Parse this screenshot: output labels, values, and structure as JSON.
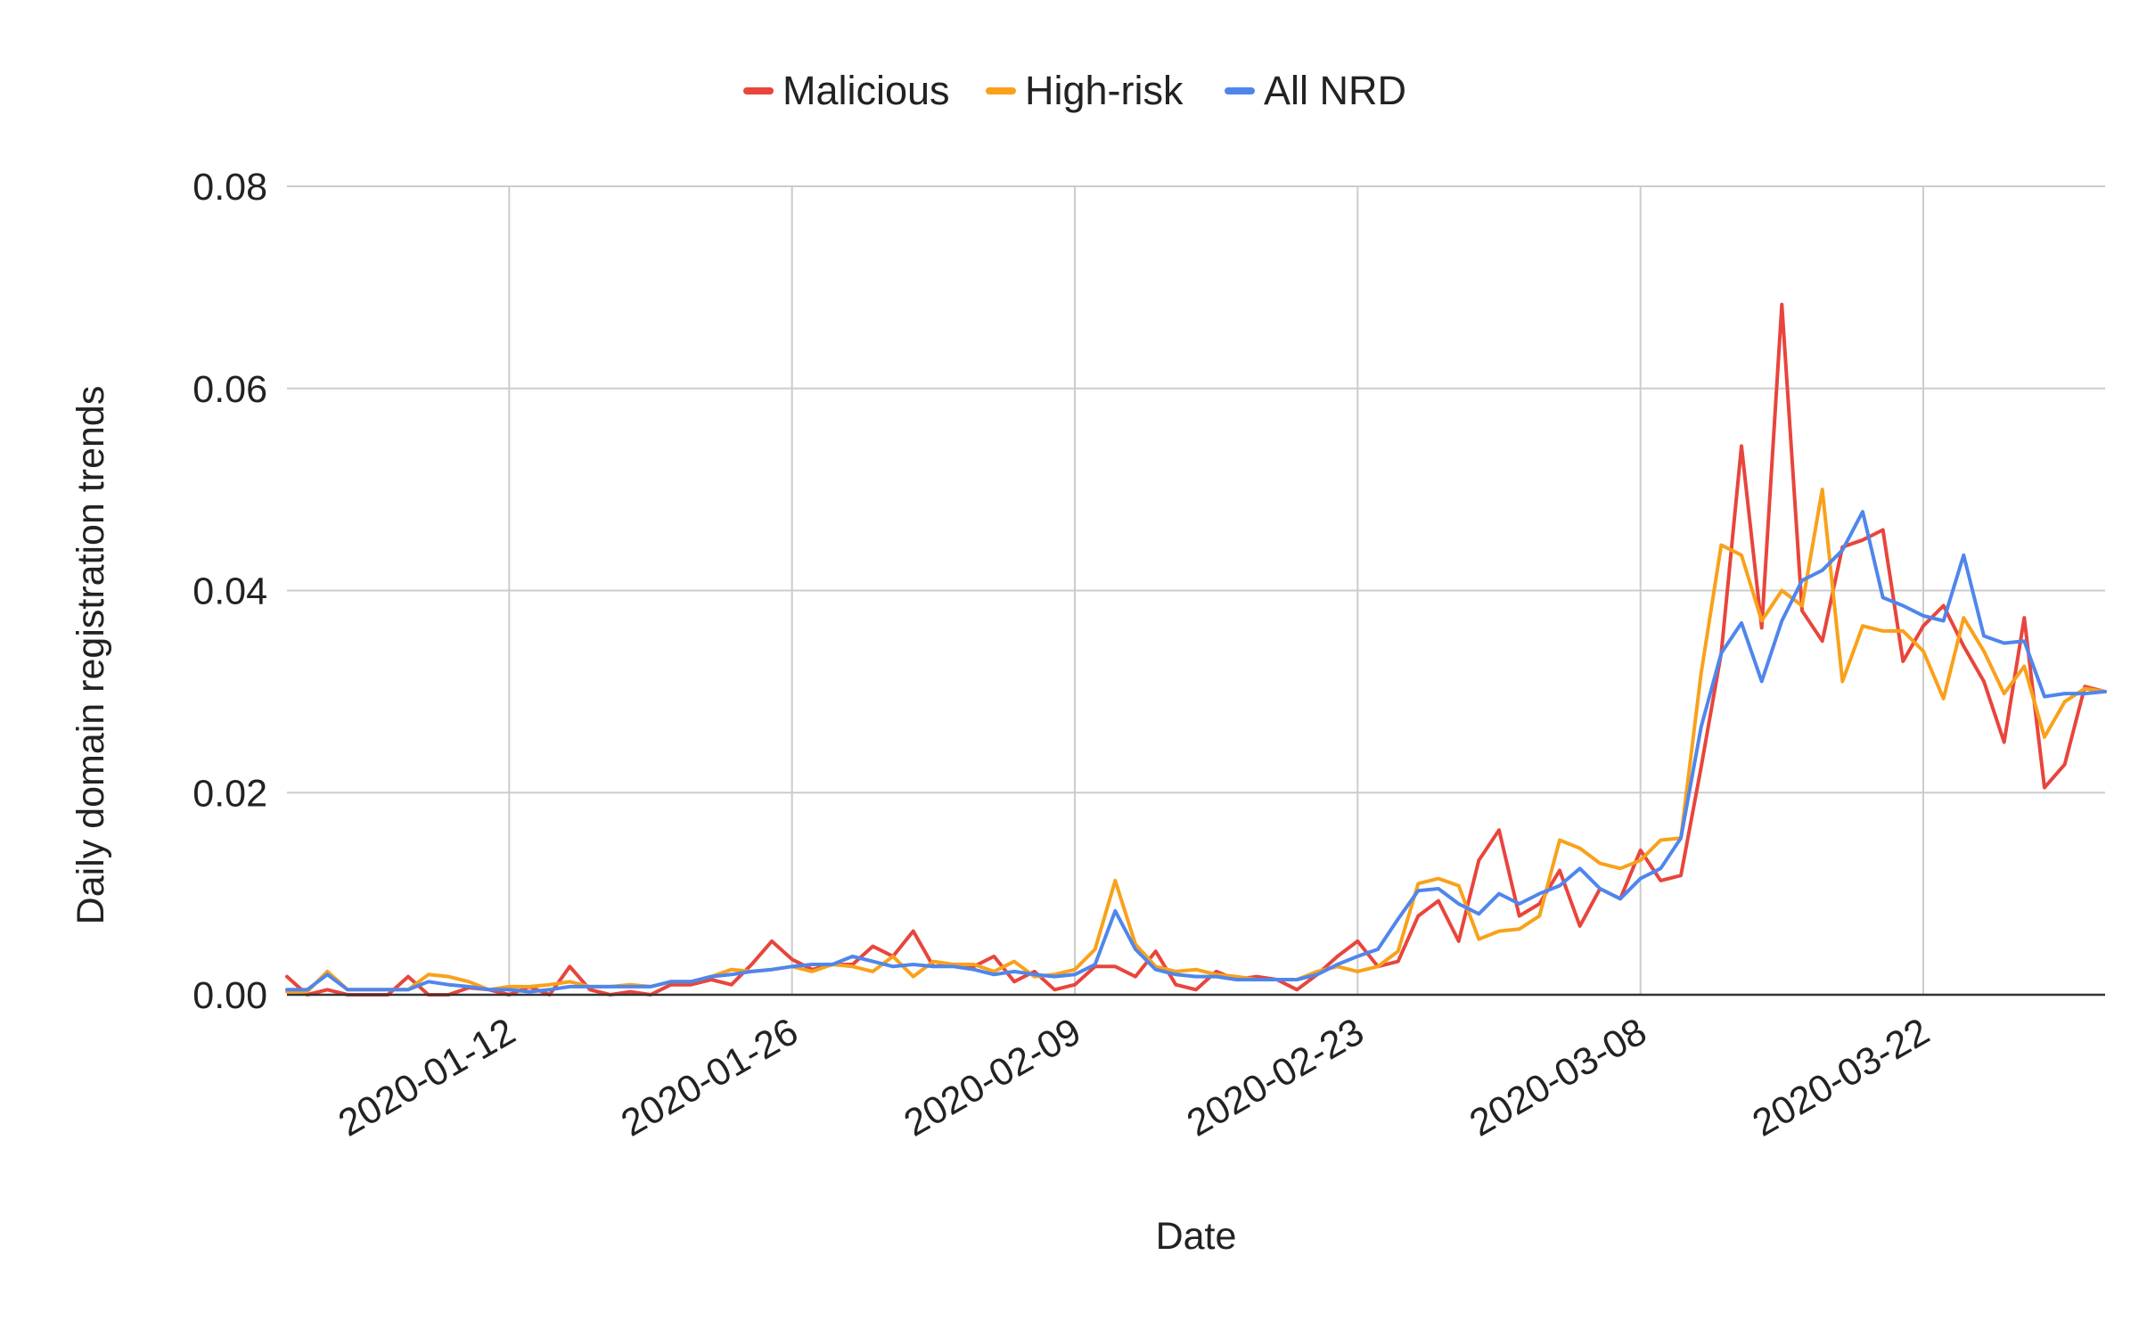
{
  "chart_data": {
    "type": "line",
    "title": "",
    "xlabel": "Date",
    "ylabel": "Daily domain registration trends",
    "x_tick_labels": [
      "2020-01-12",
      "2020-01-26",
      "2020-02-09",
      "2020-02-23",
      "2020-03-08",
      "2020-03-22"
    ],
    "y_tick_labels": [
      "0.00",
      "0.02",
      "0.04",
      "0.06",
      "0.08"
    ],
    "ylim": [
      0,
      0.08
    ],
    "xlim": [
      "2020-01-01",
      "2020-03-31"
    ],
    "grid": true,
    "legend_position": "top",
    "colors": {
      "Malicious": "#e8453c",
      "High-risk": "#f9a11b",
      "All NRD": "#4f86ec",
      "grid": "#cccccc",
      "axis": "#333333"
    },
    "x": [
      "2020-01-01",
      "2020-01-02",
      "2020-01-03",
      "2020-01-04",
      "2020-01-05",
      "2020-01-06",
      "2020-01-07",
      "2020-01-08",
      "2020-01-09",
      "2020-01-10",
      "2020-01-11",
      "2020-01-12",
      "2020-01-13",
      "2020-01-14",
      "2020-01-15",
      "2020-01-16",
      "2020-01-17",
      "2020-01-18",
      "2020-01-19",
      "2020-01-20",
      "2020-01-21",
      "2020-01-22",
      "2020-01-23",
      "2020-01-24",
      "2020-01-25",
      "2020-01-26",
      "2020-01-27",
      "2020-01-28",
      "2020-01-29",
      "2020-01-30",
      "2020-01-31",
      "2020-02-01",
      "2020-02-02",
      "2020-02-03",
      "2020-02-04",
      "2020-02-05",
      "2020-02-06",
      "2020-02-07",
      "2020-02-08",
      "2020-02-09",
      "2020-02-10",
      "2020-02-11",
      "2020-02-12",
      "2020-02-13",
      "2020-02-14",
      "2020-02-15",
      "2020-02-16",
      "2020-02-17",
      "2020-02-18",
      "2020-02-19",
      "2020-02-20",
      "2020-02-21",
      "2020-02-22",
      "2020-02-23",
      "2020-02-24",
      "2020-02-25",
      "2020-02-26",
      "2020-02-27",
      "2020-02-28",
      "2020-02-29",
      "2020-03-01",
      "2020-03-02",
      "2020-03-03",
      "2020-03-04",
      "2020-03-05",
      "2020-03-06",
      "2020-03-07",
      "2020-03-08",
      "2020-03-09",
      "2020-03-10",
      "2020-03-11",
      "2020-03-12",
      "2020-03-13",
      "2020-03-14",
      "2020-03-15",
      "2020-03-16",
      "2020-03-17",
      "2020-03-18",
      "2020-03-19",
      "2020-03-20",
      "2020-03-21",
      "2020-03-22",
      "2020-03-23",
      "2020-03-24",
      "2020-03-25",
      "2020-03-26",
      "2020-03-27",
      "2020-03-28",
      "2020-03-29",
      "2020-03-30",
      "2020-03-31"
    ],
    "series": [
      {
        "name": "Malicious",
        "values": [
          0.0018,
          0.0,
          0.0005,
          0.0,
          0.0,
          0.0,
          0.0018,
          0.0,
          0.0,
          0.0007,
          0.0005,
          0.0,
          0.0008,
          0.0,
          0.0028,
          0.0005,
          0.0,
          0.0003,
          0.0,
          0.001,
          0.001,
          0.0015,
          0.001,
          0.003,
          0.0053,
          0.0035,
          0.0025,
          0.003,
          0.003,
          0.0048,
          0.0038,
          0.0063,
          0.0028,
          0.003,
          0.0028,
          0.0038,
          0.0013,
          0.0023,
          0.0005,
          0.001,
          0.0028,
          0.0028,
          0.0018,
          0.0043,
          0.001,
          0.0005,
          0.0023,
          0.0015,
          0.0018,
          0.0015,
          0.0005,
          0.002,
          0.0038,
          0.0053,
          0.0028,
          0.0033,
          0.0078,
          0.0093,
          0.0053,
          0.0133,
          0.0163,
          0.0078,
          0.009,
          0.0123,
          0.0068,
          0.0105,
          0.0095,
          0.0143,
          0.0113,
          0.0118,
          0.0225,
          0.0338,
          0.0543,
          0.0363,
          0.0683,
          0.038,
          0.035,
          0.0443,
          0.045,
          0.046,
          0.033,
          0.0365,
          0.0385,
          0.0345,
          0.031,
          0.025,
          0.0373,
          0.0205,
          0.0228,
          0.0305,
          0.03
        ]
      },
      {
        "name": "High-risk",
        "values": [
          0.0003,
          0.0003,
          0.0023,
          0.0005,
          0.0005,
          0.0005,
          0.0005,
          0.002,
          0.0018,
          0.0013,
          0.0005,
          0.0008,
          0.0008,
          0.001,
          0.0013,
          0.0008,
          0.0008,
          0.001,
          0.0008,
          0.0013,
          0.0013,
          0.0018,
          0.0025,
          0.0023,
          0.0025,
          0.0028,
          0.0023,
          0.003,
          0.0028,
          0.0023,
          0.0038,
          0.0018,
          0.0033,
          0.003,
          0.003,
          0.0023,
          0.0033,
          0.0018,
          0.002,
          0.0025,
          0.0045,
          0.0113,
          0.005,
          0.0028,
          0.0023,
          0.0025,
          0.002,
          0.0018,
          0.0015,
          0.0015,
          0.0015,
          0.0023,
          0.0028,
          0.0023,
          0.0028,
          0.0043,
          0.011,
          0.0115,
          0.0108,
          0.0055,
          0.0063,
          0.0065,
          0.0078,
          0.0153,
          0.0145,
          0.013,
          0.0125,
          0.0133,
          0.0153,
          0.0155,
          0.0318,
          0.0445,
          0.0435,
          0.037,
          0.04,
          0.0385,
          0.05,
          0.031,
          0.0365,
          0.036,
          0.036,
          0.034,
          0.0293,
          0.0373,
          0.034,
          0.0298,
          0.0325,
          0.0255,
          0.029,
          0.0303,
          0.03
        ]
      },
      {
        "name": "All NRD",
        "values": [
          0.0005,
          0.0005,
          0.002,
          0.0005,
          0.0005,
          0.0005,
          0.0005,
          0.0013,
          0.001,
          0.0008,
          0.0005,
          0.0005,
          0.0003,
          0.0005,
          0.0008,
          0.0008,
          0.0008,
          0.0008,
          0.0008,
          0.0013,
          0.0013,
          0.0018,
          0.002,
          0.0023,
          0.0025,
          0.0028,
          0.003,
          0.003,
          0.0038,
          0.0033,
          0.0028,
          0.003,
          0.0028,
          0.0028,
          0.0025,
          0.002,
          0.0023,
          0.002,
          0.0018,
          0.002,
          0.003,
          0.0083,
          0.0045,
          0.0025,
          0.002,
          0.0018,
          0.0018,
          0.0015,
          0.0015,
          0.0015,
          0.0015,
          0.002,
          0.003,
          0.0038,
          0.0045,
          0.0075,
          0.0103,
          0.0105,
          0.009,
          0.008,
          0.01,
          0.009,
          0.01,
          0.0108,
          0.0125,
          0.0105,
          0.0095,
          0.0115,
          0.0125,
          0.0155,
          0.0265,
          0.0338,
          0.0368,
          0.031,
          0.037,
          0.041,
          0.042,
          0.044,
          0.0478,
          0.0393,
          0.0385,
          0.0375,
          0.037,
          0.0435,
          0.0355,
          0.0348,
          0.035,
          0.0295,
          0.0298,
          0.0298,
          0.03
        ]
      }
    ]
  }
}
